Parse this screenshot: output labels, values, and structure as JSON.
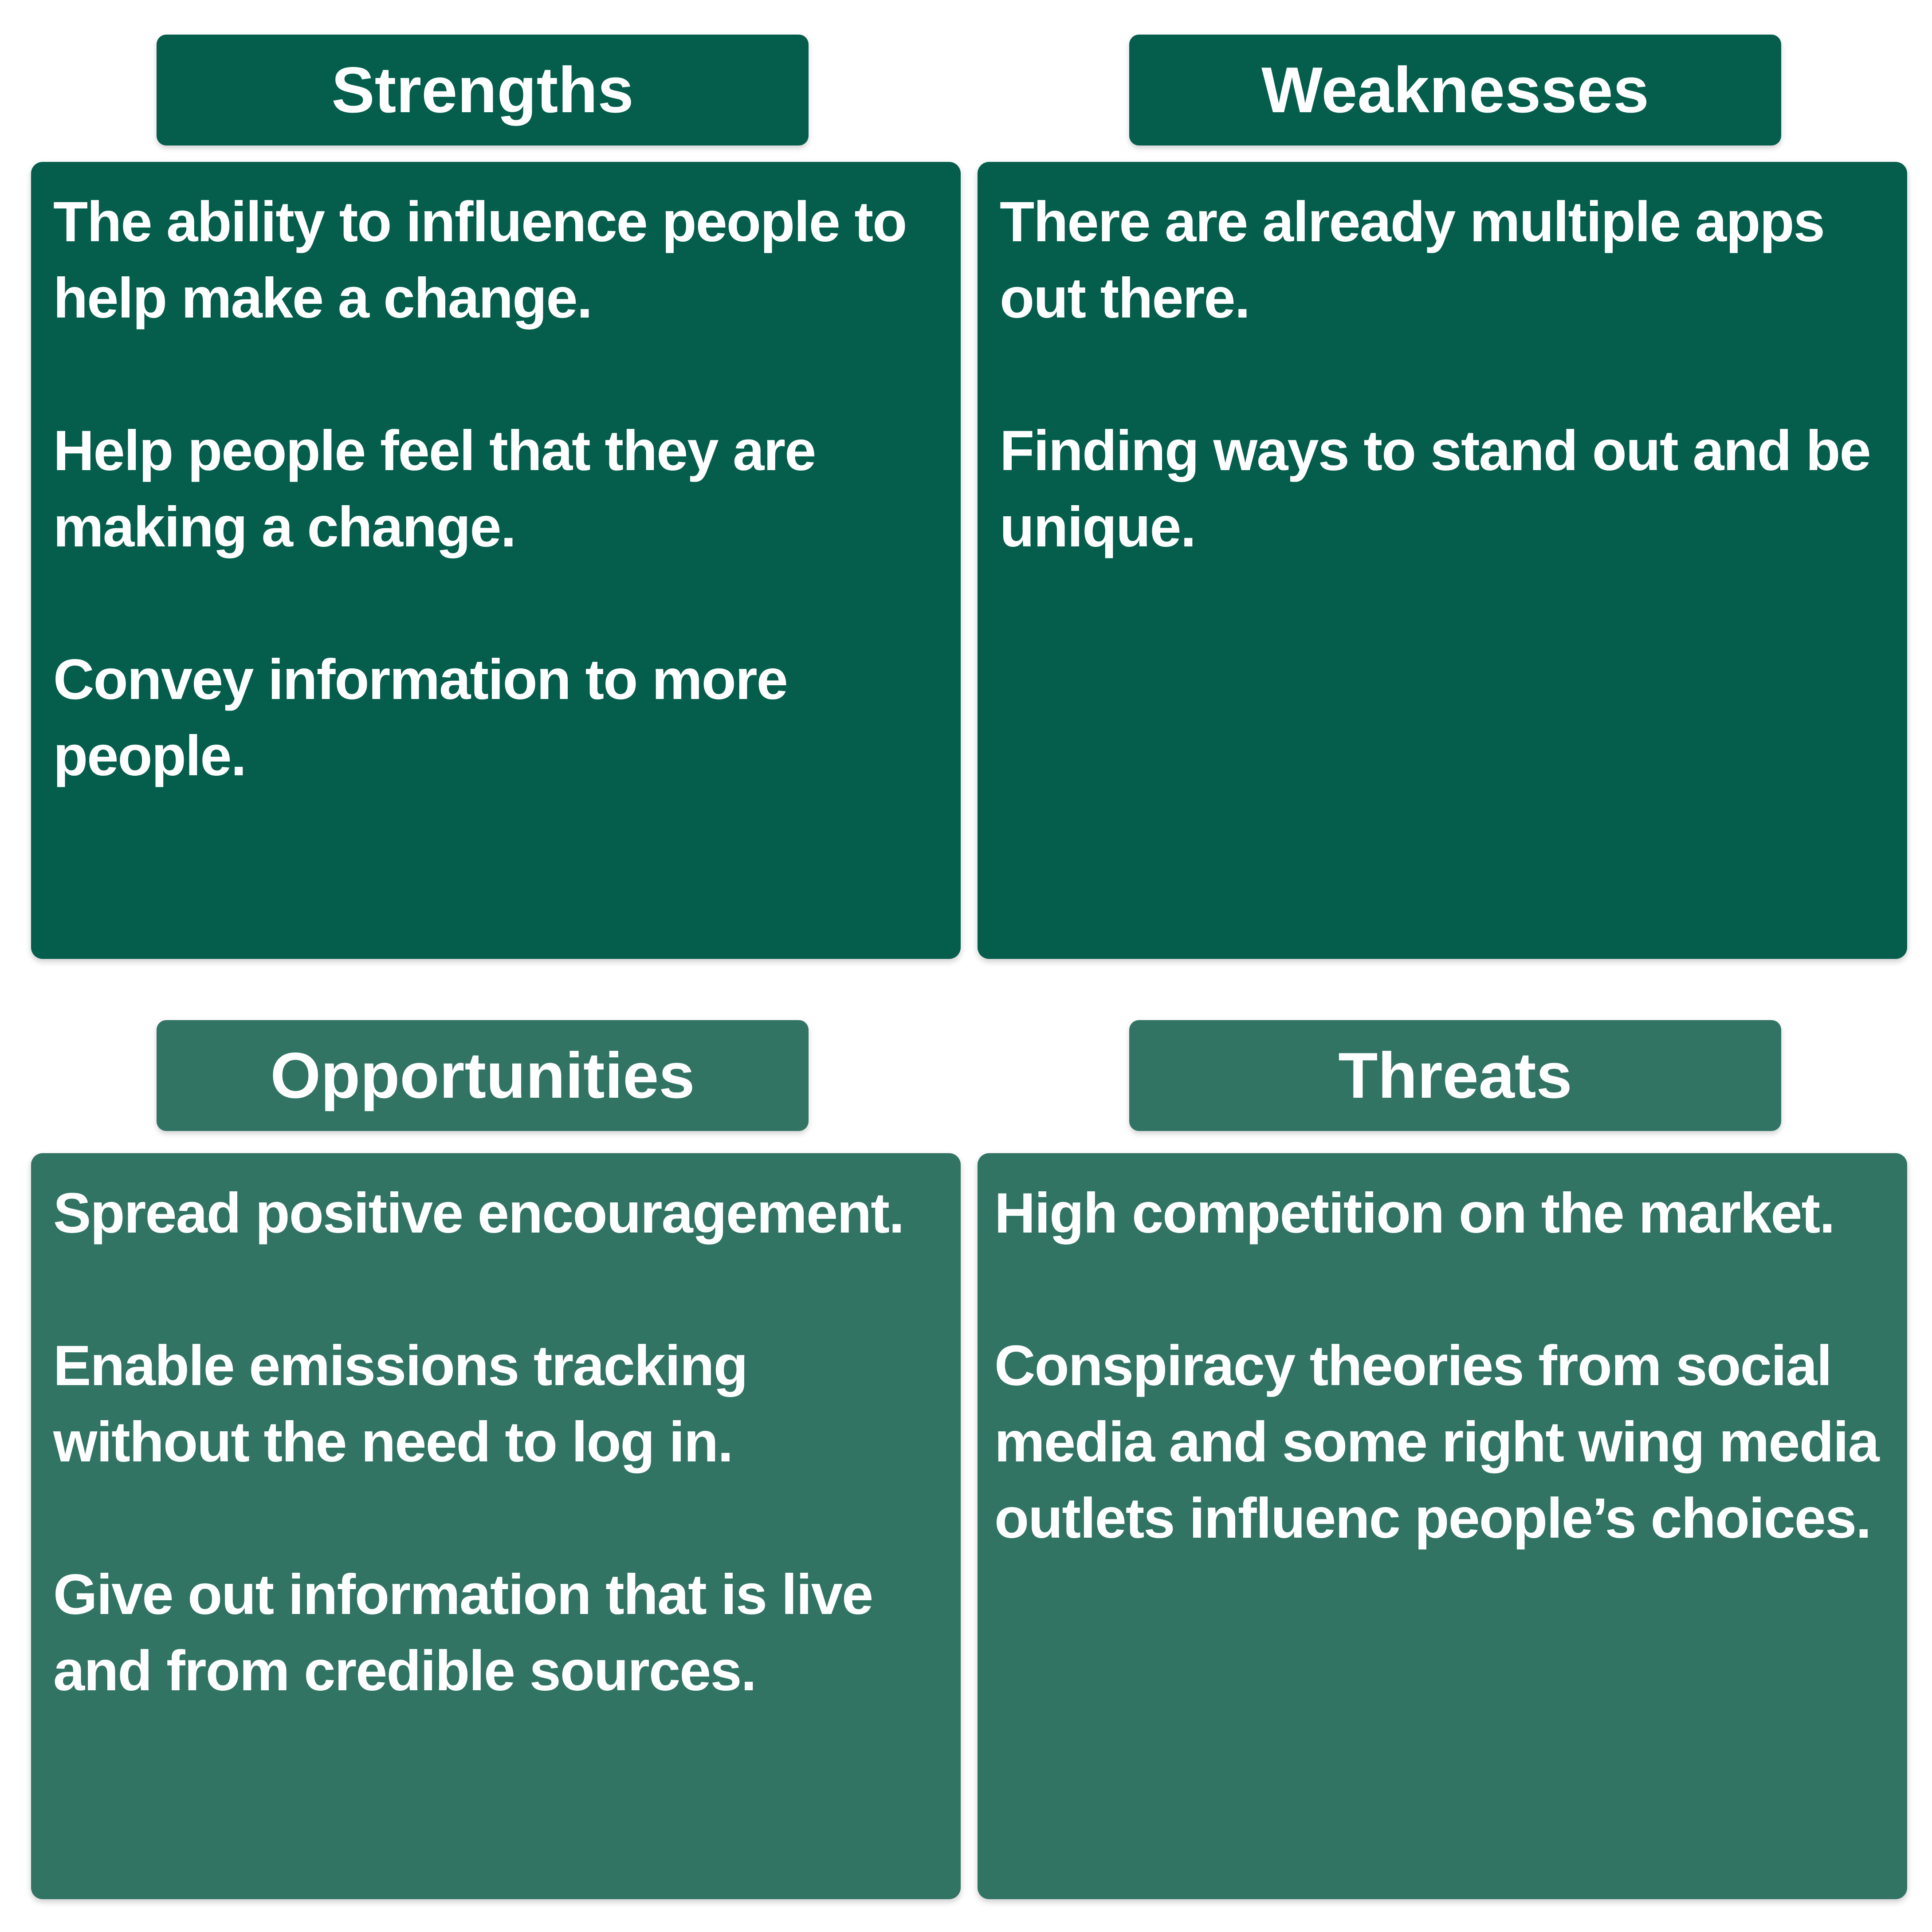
{
  "strengths": {
    "title": "Strengths",
    "items": [
      "The ability to influence people to help make a change.",
      "Help people feel that they are making a change.",
      "Convey information to more people."
    ]
  },
  "weaknesses": {
    "title": "Weaknesses",
    "items": [
      "There are already multiple apps out there.",
      "Finding ways to stand out and be unique."
    ]
  },
  "opportunities": {
    "title": "Opportunities",
    "items": [
      "Spread positive encouragement.",
      "Enable emissions tracking without the need to log in.",
      "Give out information that is live and from credible sources."
    ]
  },
  "threats": {
    "title": "Threats",
    "items": [
      "High competition on the market.",
      "Conspiracy theories from social media and some right wing media outlets influenc people’s choices."
    ]
  },
  "colors": {
    "dark_green": "#055e4c",
    "medium_green": "#327464",
    "text": "#ffffff"
  }
}
